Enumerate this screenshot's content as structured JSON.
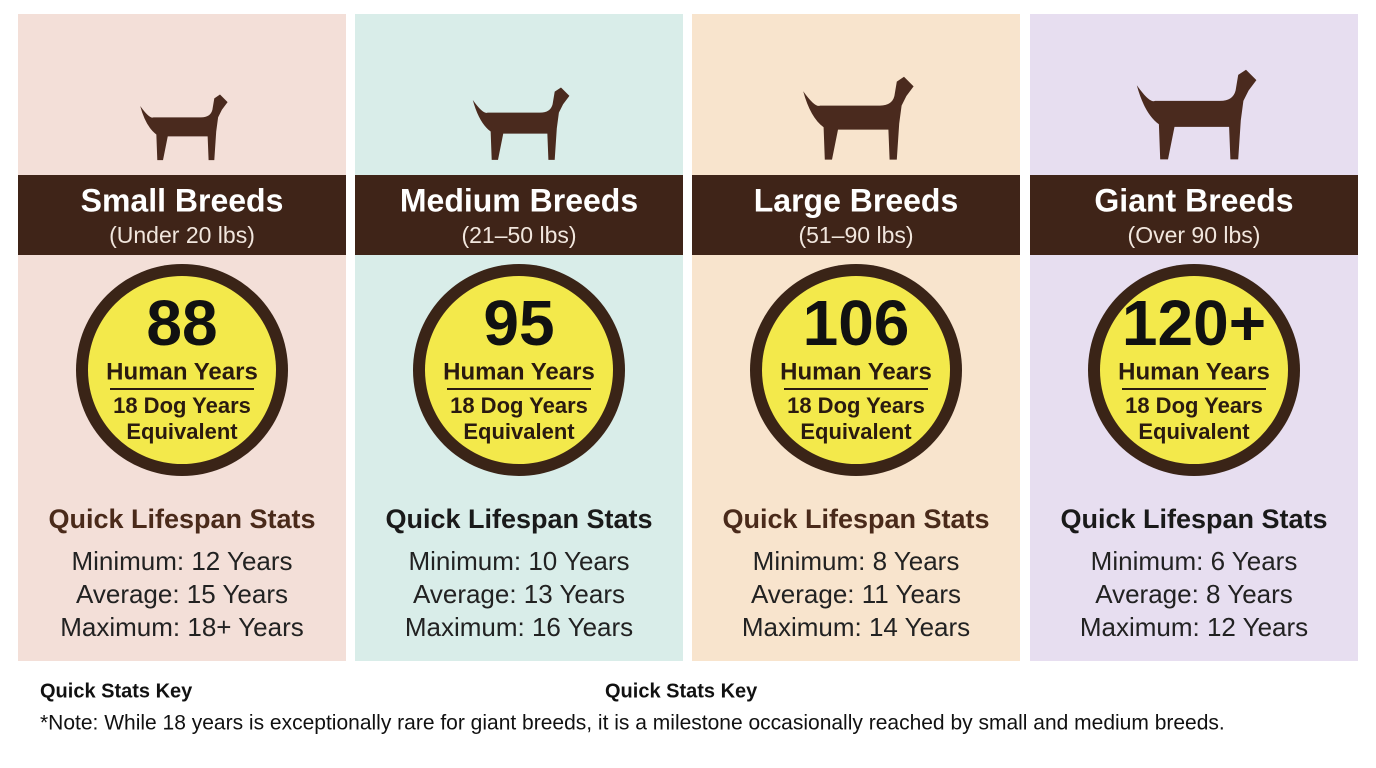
{
  "cards": [
    {
      "title": "Small Breeds",
      "subtitle": "(Under 20 lbs)",
      "human_years": "88",
      "human_label": "Human Years",
      "dog_years": [
        "18 Dog Years",
        "Equivalent"
      ],
      "stats_heading": "Quick Lifespan Stats",
      "stats": [
        "Minimum: 12 Years",
        "Average: 15 Years",
        "Maximum: 18+ Years"
      ]
    },
    {
      "title": "Medium Breeds",
      "subtitle": "(21–50 lbs)",
      "human_years": "95",
      "human_label": "Human Years",
      "dog_years": [
        "18 Dog Years",
        "Equivalent"
      ],
      "stats_heading": "Quick Lifespan Stats",
      "stats": [
        "Minimum: 10 Years",
        "Average: 13 Years",
        "Maximum: 16 Years"
      ]
    },
    {
      "title": "Large Breeds",
      "subtitle": "(51–90 lbs)",
      "human_years": "106",
      "human_label": "Human Years",
      "dog_years": [
        "18 Dog Years",
        "Equivalent"
      ],
      "stats_heading": "Quick Lifespan Stats",
      "stats": [
        "Minimum: 8 Years",
        "Average: 11 Years",
        "Maximum: 14 Years"
      ]
    },
    {
      "title": "Giant Breeds",
      "subtitle": "(Over 90 lbs)",
      "human_years": "120+",
      "human_label": "Human Years",
      "dog_years": [
        "18 Dog Years",
        "Equivalent"
      ],
      "stats_heading": "Quick Lifespan Stats",
      "stats": [
        "Minimum: 6 Years",
        "Average: 8 Years",
        "Maximum: 12 Years"
      ]
    }
  ],
  "footer": {
    "key_labels": [
      "Quick Stats Key",
      "Quick Stats Key"
    ],
    "note": "*Note: While 18 years is exceptionally rare for giant breeds, it is a milestone occasionally reached by small and medium breeds."
  }
}
